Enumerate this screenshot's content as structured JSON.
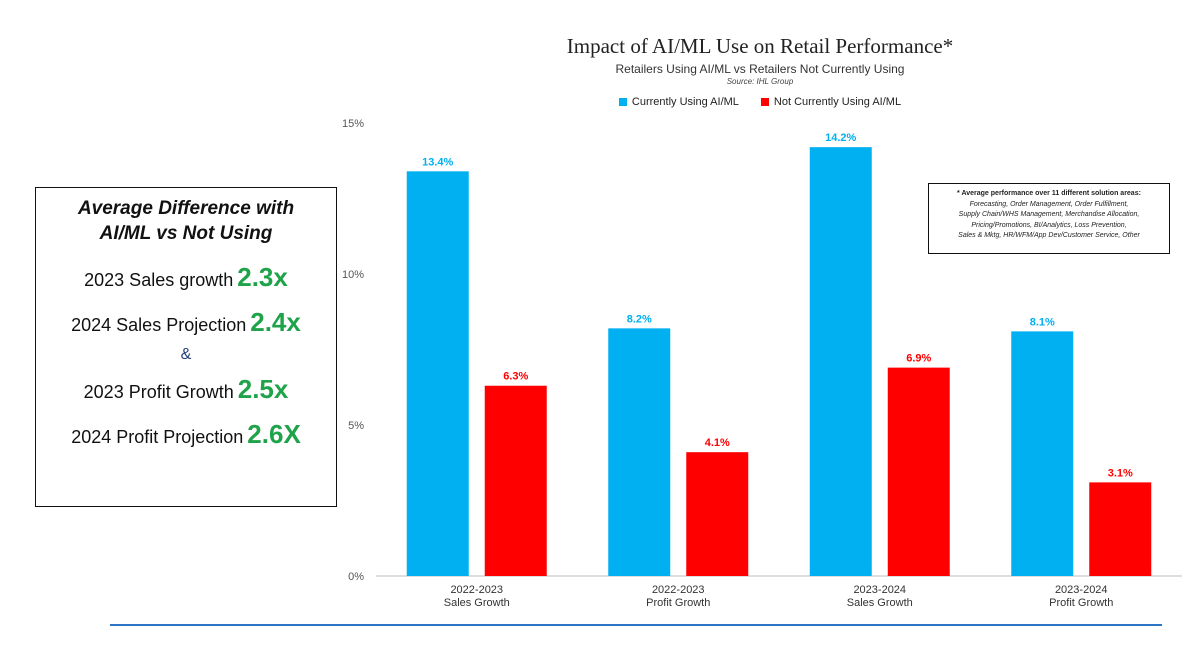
{
  "chart_data": {
    "type": "bar",
    "title": "Impact of AI/ML Use on Retail Performance*",
    "subtitle": "Retailers Using AI/ML vs Retailers Not Currently Using",
    "source": "Source: IHL Group",
    "categories": [
      [
        "2022-2023",
        "Sales Growth"
      ],
      [
        "2022-2023",
        "Profit Growth"
      ],
      [
        "2023-2024",
        "Sales Growth"
      ],
      [
        "2023-2024",
        "Profit Growth"
      ]
    ],
    "series": [
      {
        "name": "Currently Using AI/ML",
        "color": "#00b0f0",
        "values": [
          13.4,
          8.2,
          14.2,
          8.1
        ],
        "labels": [
          "13.4%",
          "8.2%",
          "14.2%",
          "8.1%"
        ]
      },
      {
        "name": "Not Currently Using AI/ML",
        "color": "#ff0000",
        "values": [
          6.3,
          4.1,
          6.9,
          3.1
        ],
        "labels": [
          "6.3%",
          "4.1%",
          "6.9%",
          "3.1%"
        ]
      }
    ],
    "ylim": [
      0,
      15
    ],
    "yticks": [
      0,
      5,
      10,
      15
    ],
    "ytick_labels": [
      "0%",
      "5%",
      "10%",
      "15%"
    ],
    "grid": false,
    "legend_position": "top-center"
  },
  "note": {
    "heading": "* Average performance over 11 different solution areas:",
    "lines": [
      "Forecasting, Order Management, Order Fulfillment,",
      "Supply Chain/WHS Management, Merchandise Allocation,",
      "Pricing/Promotions, BI/Analytics, Loss Prevention,",
      "Sales & Mktg, HR/WFM/App Dev/Customer Service, Other"
    ]
  },
  "summary": {
    "heading_line1": "Average Difference with",
    "heading_line2": "AI/ML vs Not Using",
    "rows": [
      {
        "label": "2023 Sales growth",
        "multiplier": "2.3x"
      },
      {
        "label": "2024 Sales Projection",
        "multiplier": "2.4x"
      },
      {
        "label": "2023 Profit Growth",
        "multiplier": "2.5x"
      },
      {
        "label": "2024 Profit Projection",
        "multiplier": "2.6X"
      }
    ],
    "separator": "&"
  },
  "colors": {
    "using": "#00b0f0",
    "not_using": "#ff0000",
    "multiplier": "#1fa34a",
    "rule": "#2e75c8"
  }
}
